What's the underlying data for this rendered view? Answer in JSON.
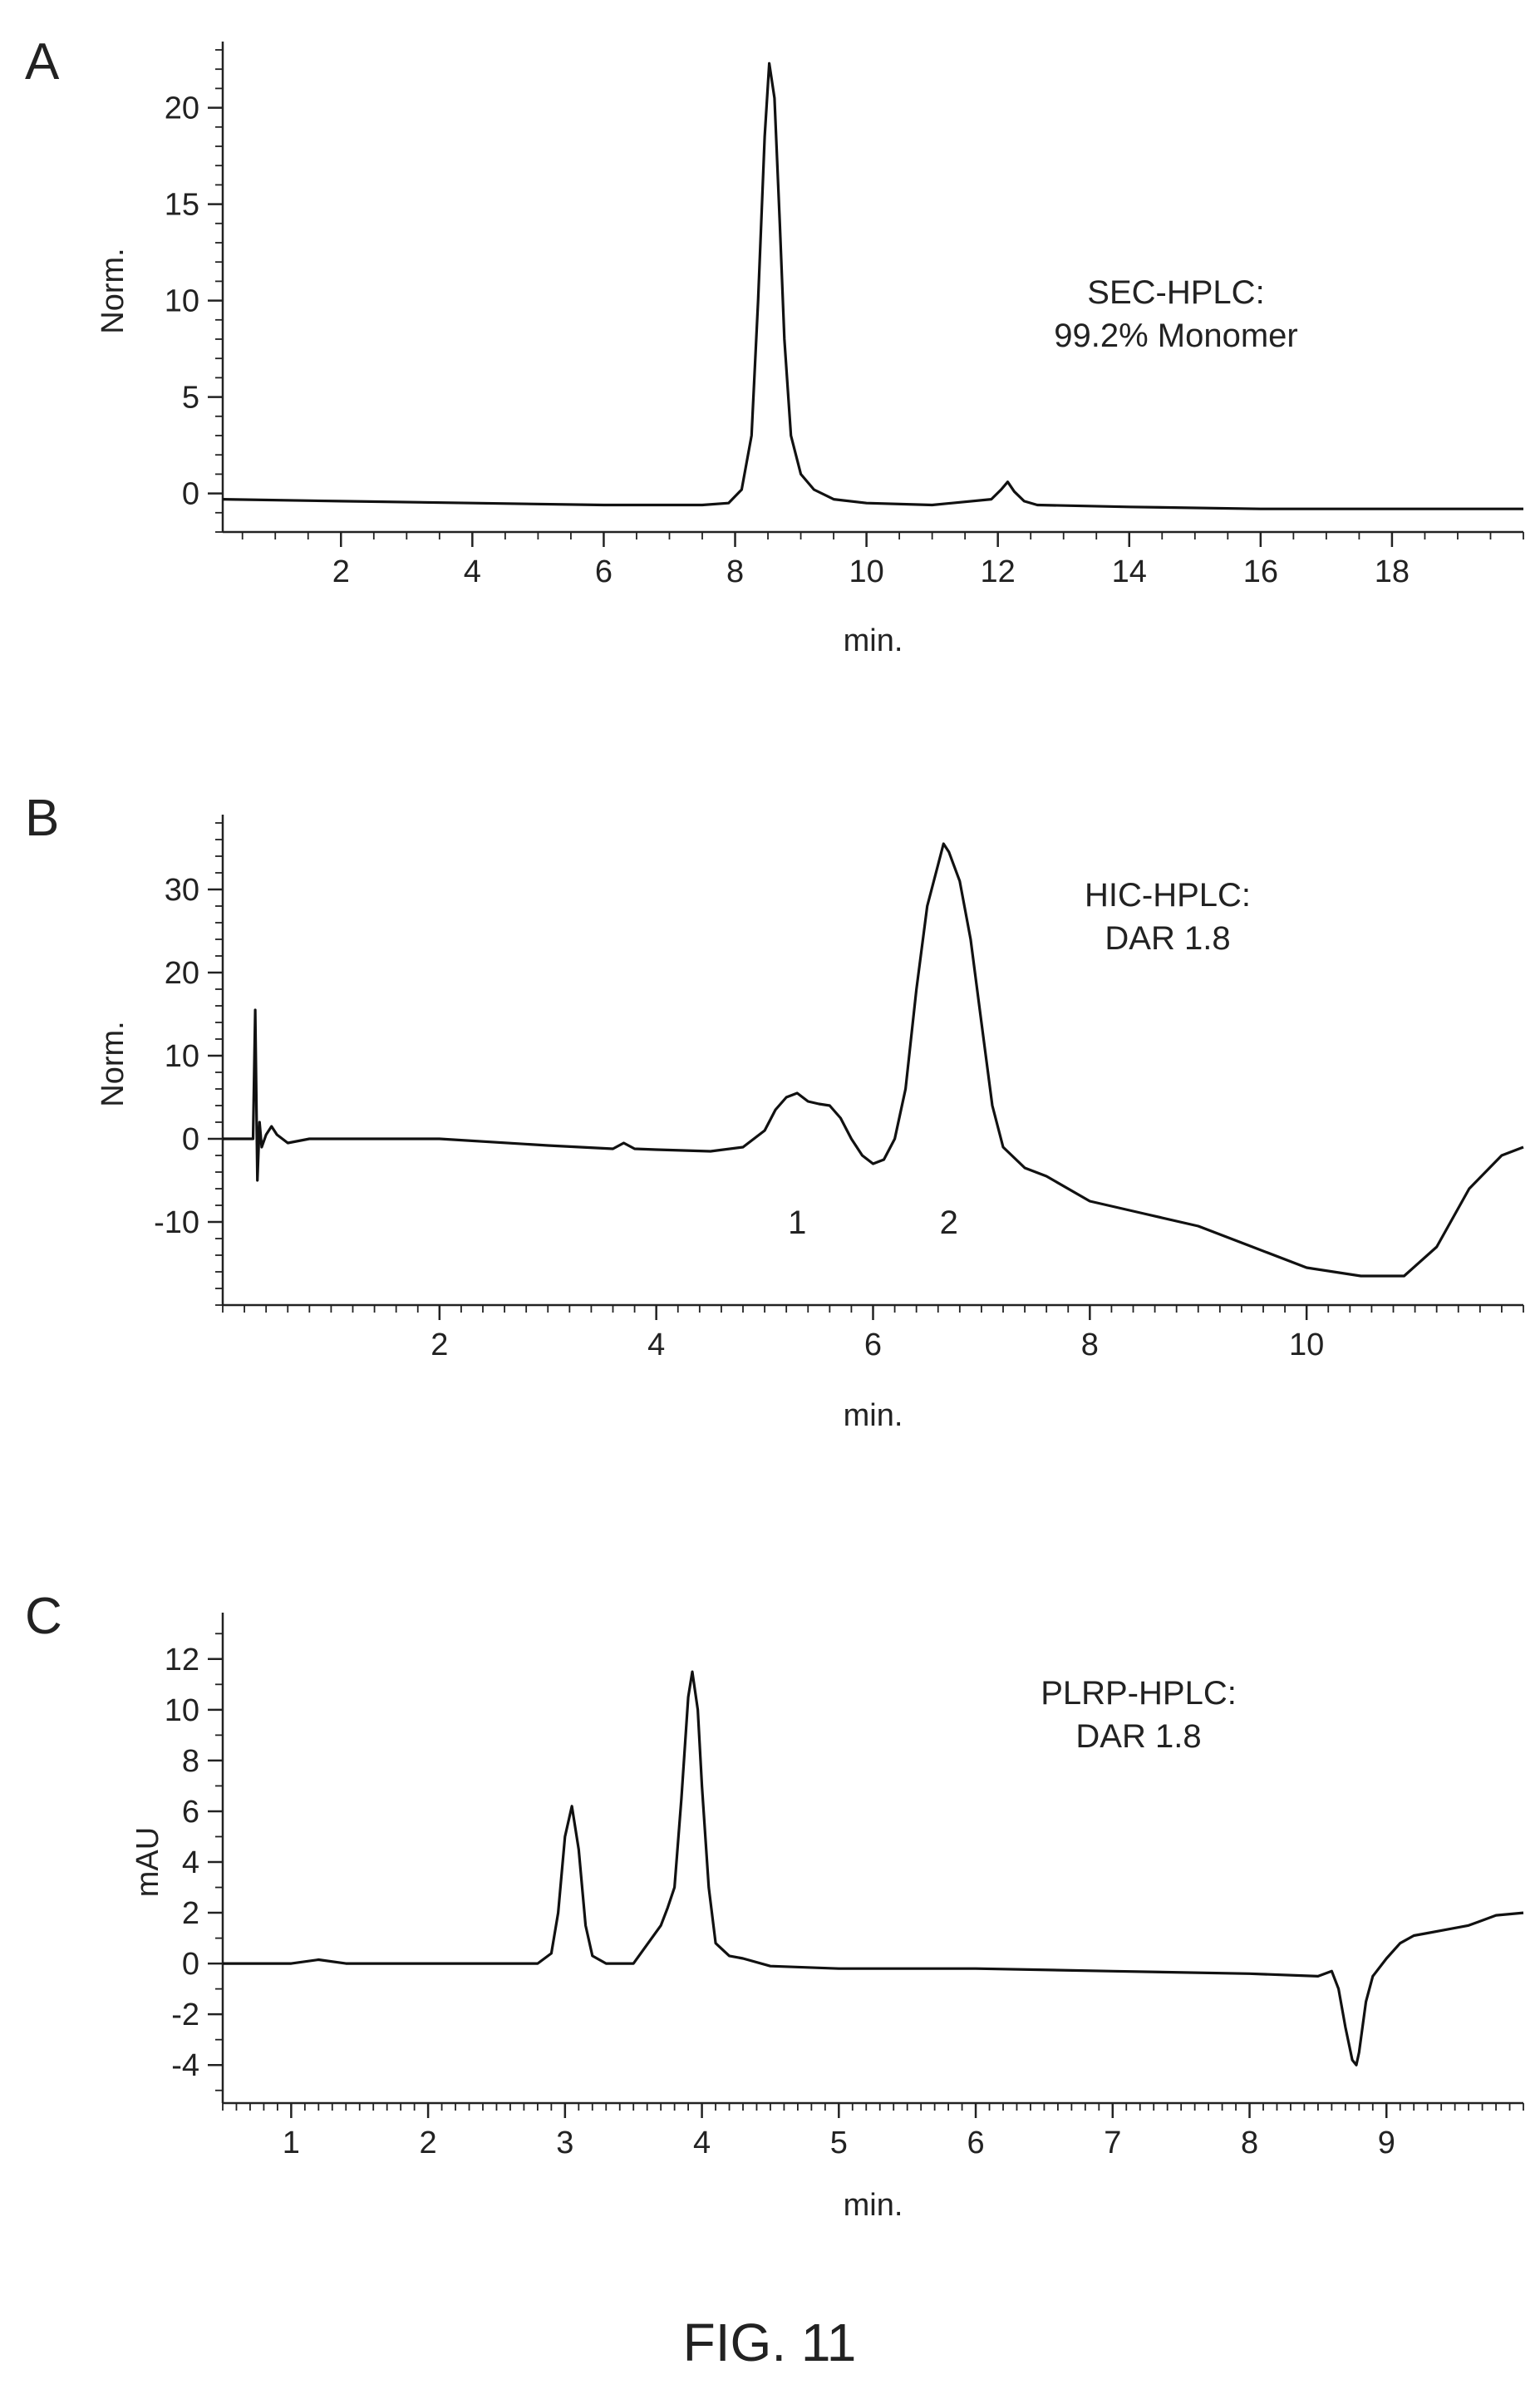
{
  "figure": {
    "label": "FIG. 11"
  },
  "chart_data": [
    {
      "type": "line",
      "panel_label": "A",
      "xlabel": "min.",
      "ylabel": "Norm.",
      "xlim": [
        0.2,
        20
      ],
      "ylim": [
        -2,
        23
      ],
      "x_ticks": [
        2,
        4,
        6,
        8,
        10,
        12,
        14,
        16,
        18
      ],
      "y_ticks": [
        0,
        5,
        10,
        15,
        20
      ],
      "x_minor_step": 0.5,
      "y_minor_step": 1,
      "annotation": [
        "SEC-HPLC:",
        "99.2% Monomer"
      ],
      "peak_labels": [],
      "series": [
        {
          "x": [
            0.2,
            2,
            4,
            6,
            7.5,
            7.9,
            8.1,
            8.25,
            8.35,
            8.45,
            8.52,
            8.6,
            8.68,
            8.75,
            8.85,
            9.0,
            9.2,
            9.5,
            10.0,
            11.0,
            11.9,
            12.05,
            12.15,
            12.25,
            12.4,
            12.6,
            14,
            16,
            18,
            20
          ],
          "y": [
            -0.3,
            -0.4,
            -0.5,
            -0.6,
            -0.6,
            -0.5,
            0.2,
            3.0,
            10.0,
            18.5,
            22.3,
            20.5,
            14.0,
            8.0,
            3.0,
            1.0,
            0.2,
            -0.3,
            -0.5,
            -0.6,
            -0.3,
            0.2,
            0.6,
            0.1,
            -0.4,
            -0.6,
            -0.7,
            -0.8,
            -0.8,
            -0.8
          ]
        }
      ]
    },
    {
      "type": "line",
      "panel_label": "B",
      "xlabel": "min.",
      "ylabel": "Norm.",
      "xlim": [
        0,
        12
      ],
      "ylim": [
        -20,
        38
      ],
      "x_ticks": [
        2,
        4,
        6,
        8,
        10
      ],
      "y_ticks": [
        -10,
        0,
        10,
        20,
        30
      ],
      "x_minor_step": 0.2,
      "y_minor_step": 2,
      "annotation": [
        "HIC-HPLC:",
        "DAR 1.8"
      ],
      "peak_labels": [
        {
          "text": "1",
          "x": 5.3,
          "y": -10
        },
        {
          "text": "2",
          "x": 6.7,
          "y": -10
        }
      ],
      "series": [
        {
          "x": [
            0.0,
            0.28,
            0.3,
            0.32,
            0.34,
            0.36,
            0.4,
            0.45,
            0.5,
            0.6,
            0.8,
            1.0,
            2.0,
            3.0,
            3.6,
            3.7,
            3.8,
            4.0,
            4.5,
            4.8,
            5.0,
            5.1,
            5.2,
            5.3,
            5.4,
            5.5,
            5.6,
            5.7,
            5.8,
            5.9,
            6.0,
            6.1,
            6.2,
            6.3,
            6.4,
            6.5,
            6.6,
            6.65,
            6.7,
            6.8,
            6.9,
            7.0,
            7.1,
            7.2,
            7.4,
            7.6,
            8.0,
            8.5,
            9.0,
            9.5,
            10.0,
            10.5,
            10.9,
            11.2,
            11.5,
            11.8,
            12.0
          ],
          "y": [
            0,
            0,
            15.5,
            -5,
            2,
            -1,
            0.5,
            1.5,
            0.5,
            -0.5,
            0,
            0,
            0,
            -0.8,
            -1.2,
            -0.5,
            -1.2,
            -1.3,
            -1.5,
            -1.0,
            1.0,
            3.5,
            5.0,
            5.5,
            4.5,
            4.2,
            4.0,
            2.5,
            0,
            -2.0,
            -3.0,
            -2.5,
            0,
            6,
            18,
            28,
            33,
            35.5,
            34.5,
            31,
            24,
            14,
            4,
            -1,
            -3.5,
            -4.5,
            -7.5,
            -9,
            -10.5,
            -13,
            -15.5,
            -16.5,
            -16.5,
            -13,
            -6,
            -2,
            -1
          ]
        }
      ]
    },
    {
      "type": "line",
      "panel_label": "C",
      "xlabel": "min.",
      "ylabel": "mAU",
      "xlim": [
        0.5,
        10
      ],
      "ylim": [
        -5.5,
        13.5
      ],
      "x_ticks": [
        1,
        2,
        3,
        4,
        5,
        6,
        7,
        8,
        9
      ],
      "y_ticks": [
        -4,
        -2,
        0,
        2,
        4,
        6,
        8,
        10,
        12
      ],
      "x_minor_step": 0.1,
      "y_minor_step": 1,
      "annotation": [
        "PLRP-HPLC:",
        "DAR 1.8"
      ],
      "peak_labels": [],
      "series": [
        {
          "x": [
            0.5,
            1.0,
            1.2,
            1.4,
            2.0,
            2.8,
            2.9,
            2.95,
            3.0,
            3.05,
            3.1,
            3.15,
            3.2,
            3.3,
            3.5,
            3.7,
            3.75,
            3.8,
            3.85,
            3.9,
            3.93,
            3.97,
            4.0,
            4.05,
            4.1,
            4.2,
            4.3,
            4.5,
            5,
            6,
            7,
            8,
            8.5,
            8.6,
            8.65,
            8.7,
            8.75,
            8.78,
            8.8,
            8.85,
            8.9,
            9.0,
            9.1,
            9.2,
            9.3,
            9.4,
            9.6,
            9.8,
            10.0
          ],
          "y": [
            0,
            0,
            0.15,
            0,
            0,
            0,
            0.4,
            2.0,
            5.0,
            6.2,
            4.5,
            1.5,
            0.3,
            0,
            0,
            1.5,
            2.2,
            3.0,
            6.5,
            10.5,
            11.5,
            10.0,
            7.0,
            3.0,
            0.8,
            0.3,
            0.2,
            -0.1,
            -0.2,
            -0.2,
            -0.3,
            -0.4,
            -0.5,
            -0.3,
            -1.0,
            -2.5,
            -3.8,
            -4.0,
            -3.5,
            -1.5,
            -0.5,
            0.2,
            0.8,
            1.1,
            1.2,
            1.3,
            1.5,
            1.9,
            2.0
          ]
        }
      ]
    }
  ]
}
